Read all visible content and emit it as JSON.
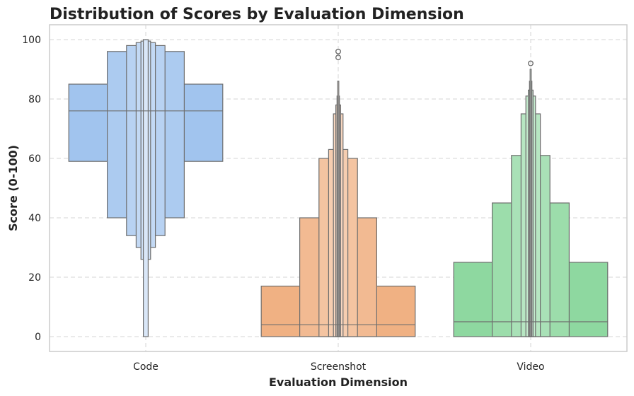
{
  "chart_data": {
    "type": "boxen",
    "title": "Distribution of Scores by Evaluation Dimension",
    "xlabel": "Evaluation Dimension",
    "ylabel": "Score (0-100)",
    "ylim": [
      -5,
      105
    ],
    "yticks": [
      0,
      20,
      40,
      60,
      80,
      100
    ],
    "grid": true,
    "categories": [
      "Code",
      "Screenshot",
      "Video"
    ],
    "series": [
      {
        "name": "Code",
        "color": "#a1c4ee",
        "median": 76,
        "boxes": [
          {
            "low": 59,
            "high": 85,
            "width": 0.8
          },
          {
            "low": 40,
            "high": 96,
            "width": 0.4
          },
          {
            "low": 34,
            "high": 98,
            "width": 0.2
          },
          {
            "low": 30,
            "high": 99,
            "width": 0.1
          },
          {
            "low": 26,
            "high": 99.5,
            "width": 0.05
          },
          {
            "low": 0,
            "high": 100,
            "width": 0.025
          }
        ],
        "outliers": []
      },
      {
        "name": "Screenshot",
        "color": "#f0b183",
        "median": 4,
        "boxes": [
          {
            "low": 0,
            "high": 17,
            "width": 0.8
          },
          {
            "low": 0,
            "high": 40,
            "width": 0.4
          },
          {
            "low": 0,
            "high": 60,
            "width": 0.2
          },
          {
            "low": 0,
            "high": 63,
            "width": 0.1
          },
          {
            "low": 0,
            "high": 75,
            "width": 0.05
          },
          {
            "low": 0,
            "high": 78,
            "width": 0.025
          },
          {
            "low": 0,
            "high": 81,
            "width": 0.0125
          },
          {
            "low": 0,
            "high": 86,
            "width": 0.006
          }
        ],
        "outliers": [
          94,
          96
        ]
      },
      {
        "name": "Video",
        "color": "#8ed8a0",
        "median": 5,
        "boxes": [
          {
            "low": 0,
            "high": 25,
            "width": 0.8
          },
          {
            "low": 0,
            "high": 45,
            "width": 0.4
          },
          {
            "low": 0,
            "high": 61,
            "width": 0.2
          },
          {
            "low": 0,
            "high": 75,
            "width": 0.1
          },
          {
            "low": 0,
            "high": 81,
            "width": 0.05
          },
          {
            "low": 0,
            "high": 83,
            "width": 0.025
          },
          {
            "low": 0,
            "high": 86,
            "width": 0.0125
          },
          {
            "low": 0,
            "high": 90,
            "width": 0.006
          }
        ],
        "outliers": [
          92
        ]
      }
    ]
  }
}
